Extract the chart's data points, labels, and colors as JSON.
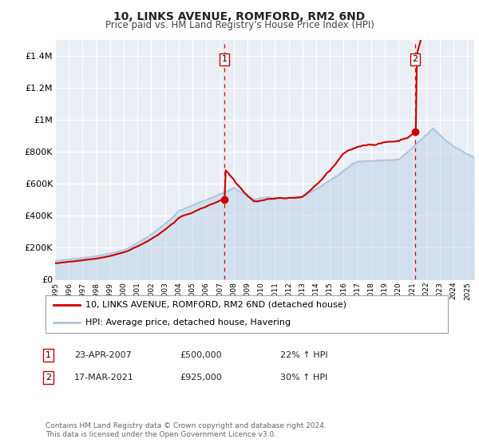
{
  "title": "10, LINKS AVENUE, ROMFORD, RM2 6ND",
  "subtitle": "Price paid vs. HM Land Registry's House Price Index (HPI)",
  "ylim": [
    0,
    1500000
  ],
  "yticks": [
    0,
    200000,
    400000,
    600000,
    800000,
    1000000,
    1200000,
    1400000
  ],
  "ytick_labels": [
    "£0",
    "£200K",
    "£400K",
    "£600K",
    "£800K",
    "£1M",
    "£1.2M",
    "£1.4M"
  ],
  "xlim_start": 1995.0,
  "xlim_end": 2025.5,
  "sale1_date": 2007.31,
  "sale1_price": 500000,
  "sale1_date_str": "23-APR-2007",
  "sale1_price_str": "£500,000",
  "sale1_hpi_str": "22% ↑ HPI",
  "sale2_date": 2021.21,
  "sale2_price": 925000,
  "sale2_date_str": "17-MAR-2021",
  "sale2_price_str": "£925,000",
  "sale2_hpi_str": "30% ↑ HPI",
  "hpi_line_color": "#aac4e0",
  "price_line_color": "#cc0000",
  "vline_color": "#dd0000",
  "legend_label_price": "10, LINKS AVENUE, ROMFORD, RM2 6ND (detached house)",
  "legend_label_hpi": "HPI: Average price, detached house, Havering",
  "footnote": "Contains HM Land Registry data © Crown copyright and database right 2024.\nThis data is licensed under the Open Government Licence v3.0.",
  "grid_color": "#ffffff",
  "plot_bg": "#e8eef4"
}
